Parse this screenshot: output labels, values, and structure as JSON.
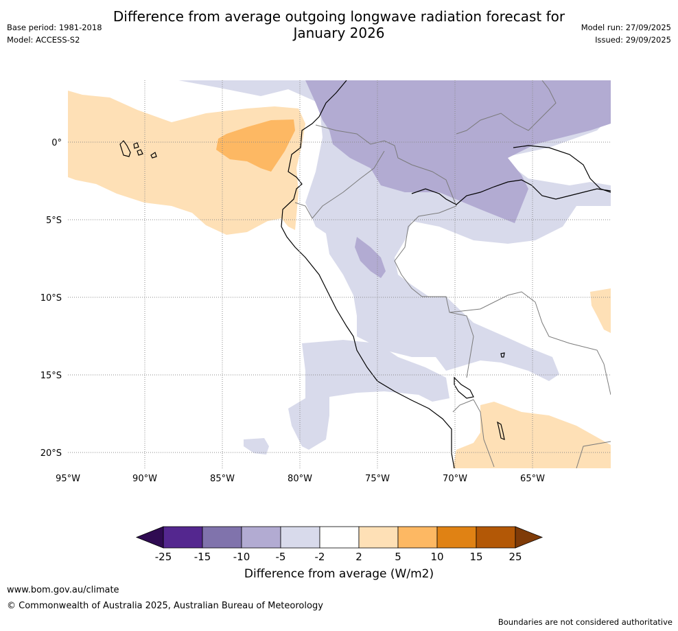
{
  "title": {
    "line1": "Difference from average outgoing longwave radiation forecast for",
    "line2": "January 2026"
  },
  "meta": {
    "base_period": "Base period: 1981-2018",
    "model": "Model: ACCESS-S2",
    "model_run": "Model run: 27/09/2025",
    "issued": "Issued: 29/09/2025"
  },
  "map": {
    "lon_labels": [
      "95°W",
      "90°W",
      "85°W",
      "80°W",
      "75°W",
      "70°W",
      "65°W"
    ],
    "lat_labels": [
      "0°",
      "5°S",
      "10°S",
      "15°S",
      "20°S"
    ]
  },
  "colorbar": {
    "title": "Difference from average (W/m2)",
    "tick_labels": [
      "-25",
      "-15",
      "-10",
      "-5",
      "-2",
      "2",
      "5",
      "10",
      "15",
      "25"
    ],
    "colors": {
      "below_-25": "#2f0b52",
      "-25_-15": "#54278f",
      "-15_-10": "#8073ac",
      "-10_-5": "#b2abd2",
      "-5_-2": "#d8daeb",
      "-2_2": "#ffffff",
      "2_5": "#fee0b6",
      "5_10": "#fdb863",
      "10_15": "#e08214",
      "15_25": "#b35806",
      "above_25": "#7f3b08"
    }
  },
  "footer": {
    "url": "www.bom.gov.au/climate",
    "copyright": "© Commonwealth of Australia 2025, Australian Bureau of Meteorology",
    "disclaimer": "Boundaries are not considered authoritative"
  }
}
